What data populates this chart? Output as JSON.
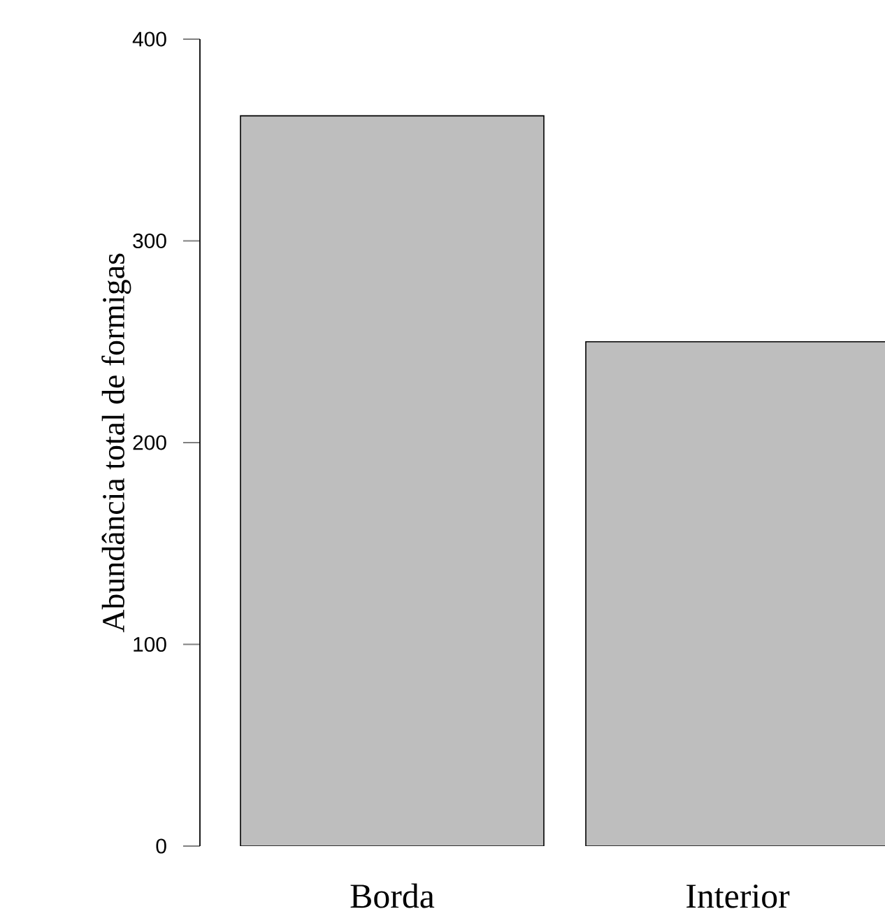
{
  "chart_data": {
    "type": "bar",
    "ylabel": "Abundância total de formigas",
    "categories": [
      "Borda",
      "Interior"
    ],
    "values": [
      362,
      250
    ],
    "color": "#bebebe",
    "ylim": [
      0,
      400
    ],
    "yticks": [
      0,
      100,
      200,
      300,
      400
    ]
  }
}
